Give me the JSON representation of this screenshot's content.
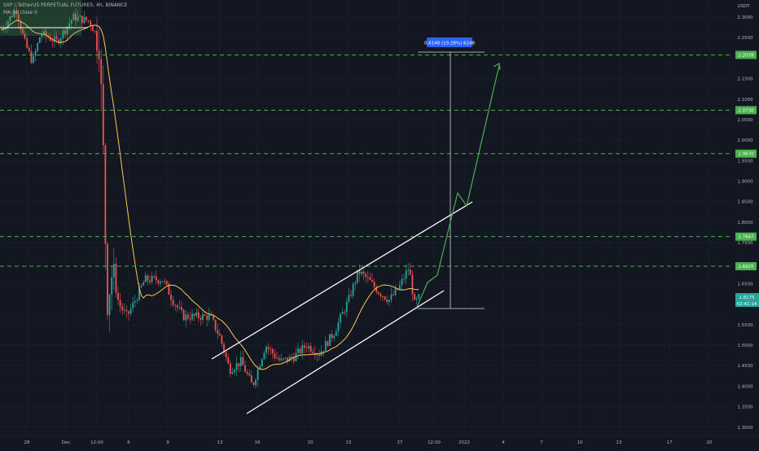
{
  "header": {
    "symbol_line": "SXP / TetherUS PERPETUAL FUTURES, 4h, BINANCE",
    "ma_line": "MA 50 close 0"
  },
  "price_axis": {
    "currency": "USDT",
    "ticks": [
      "2.3000",
      "2.2500",
      "2.1500",
      "2.1000",
      "2.0500",
      "2.0000",
      "1.9500",
      "1.9000",
      "1.8500",
      "1.8000",
      "1.7500",
      "1.6500",
      "1.5500",
      "1.5000",
      "1.4500",
      "1.4000",
      "1.3500",
      "1.3000"
    ],
    "level_labels": [
      "2.2078",
      "2.0730",
      "1.9670",
      "1.7647",
      "1.6925"
    ],
    "last_price": "1.6175",
    "countdown": "02:41:14"
  },
  "time_axis": {
    "labels": [
      "28",
      "Dec",
      "12:00",
      "6",
      "9",
      "13",
      "16",
      "20",
      "23",
      "27",
      "12:00",
      "2022",
      "4",
      "7",
      "10",
      "13",
      "17",
      "20"
    ]
  },
  "measure_label": "0.6148 (19.28%) 6248",
  "colors": {
    "background": "#131722",
    "bull": "#26a69a",
    "bear": "#ef5350",
    "level": "#4caf50",
    "ma": "#f9c74f",
    "projection": "#4caf50",
    "measure_box": "#2962ff"
  }
}
